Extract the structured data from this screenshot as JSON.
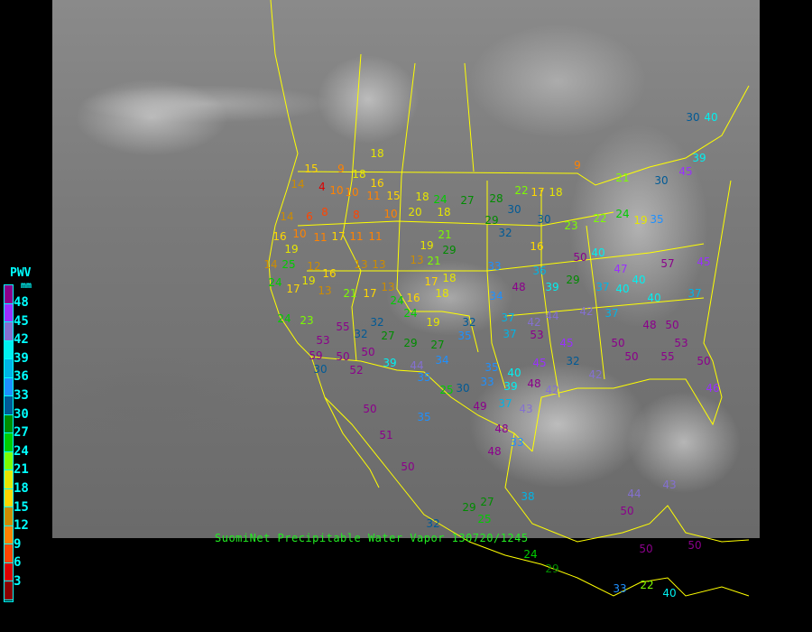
{
  "caption": "SuomiNet Precipitable Water Vapor 130720/1245",
  "legend": {
    "title": "PWV",
    "unit": "mm",
    "ticks": [
      "48",
      "45",
      "42",
      "39",
      "36",
      "33",
      "30",
      "27",
      "24",
      "21",
      "18",
      "15",
      "12",
      "9",
      "6",
      "3"
    ],
    "colors": [
      "#8b008b",
      "#9a30ff",
      "#8470d0",
      "#00f0f0",
      "#00b4e6",
      "#1e90ff",
      "#005a96",
      "#008c00",
      "#00cd00",
      "#7cfc00",
      "#e6e600",
      "#ffd700",
      "#cd8c00",
      "#ff8200",
      "#ff4500",
      "#dc0000",
      "#8b0000"
    ]
  },
  "boundary_color": "#ffff00",
  "stations": [
    18,
    15,
    9,
    18,
    14,
    4,
    10,
    10,
    16,
    11,
    15,
    18,
    24,
    27,
    28,
    22,
    17,
    18,
    9,
    21,
    14,
    6,
    8,
    8,
    10,
    20,
    18,
    29,
    30,
    30,
    23,
    22,
    24,
    19,
    35,
    30,
    45,
    39,
    30,
    40,
    16,
    10,
    19,
    11,
    17,
    11,
    11,
    19,
    29,
    21,
    32,
    16,
    14,
    25,
    12,
    16,
    13,
    13,
    13,
    21,
    18,
    17,
    33,
    36,
    50,
    40,
    47,
    40,
    57,
    45,
    24,
    17,
    19,
    13,
    21,
    17,
    13,
    24,
    16,
    18,
    34,
    48,
    39,
    29,
    37,
    40,
    40,
    37,
    24,
    23,
    55,
    32,
    24,
    19,
    32,
    37,
    42,
    44,
    42,
    37,
    48,
    50,
    53,
    32,
    27,
    29,
    27,
    35,
    37,
    53,
    45,
    50,
    53,
    59,
    50,
    50,
    39,
    44,
    34,
    35,
    40,
    45,
    32,
    50,
    55,
    50,
    30,
    52,
    35,
    33,
    39,
    48,
    42,
    42,
    46,
    50,
    25,
    30,
    37,
    43,
    49,
    35,
    48,
    51,
    33,
    48,
    50,
    29,
    27,
    25,
    32,
    38,
    44,
    50,
    43,
    50,
    50,
    24,
    29,
    33,
    22,
    40
  ]
}
